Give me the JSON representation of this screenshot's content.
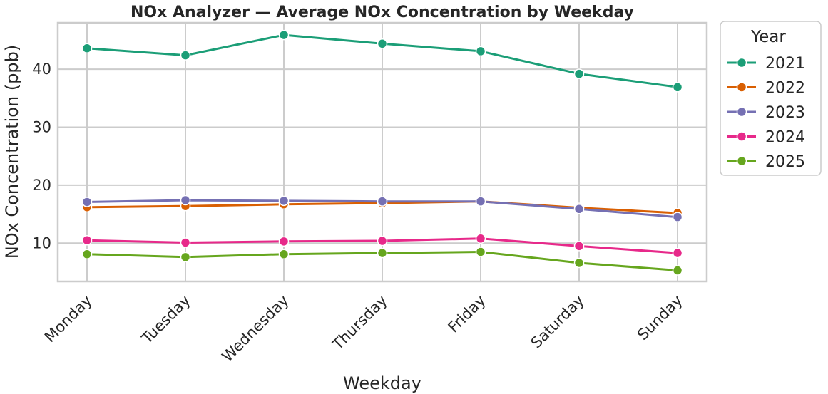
{
  "chart_data": {
    "type": "line",
    "title": "NOx Analyzer — Average NOx Concentration by Weekday",
    "xlabel": "Weekday",
    "ylabel": "NOx Concentration (ppb)",
    "categories": [
      "Monday",
      "Tuesday",
      "Wednesday",
      "Thursday",
      "Friday",
      "Saturday",
      "Sunday"
    ],
    "ylim": [
      3.4,
      48
    ],
    "yticks": [
      10,
      20,
      30,
      40
    ],
    "grid": true,
    "legend": {
      "title": "Year",
      "placement": "outside-top-right"
    },
    "series": [
      {
        "name": "2021",
        "color": "#1b9e77",
        "values": [
          43.6,
          42.4,
          45.9,
          44.4,
          43.1,
          39.2,
          36.9
        ]
      },
      {
        "name": "2022",
        "color": "#d95f02",
        "values": [
          16.2,
          16.4,
          16.7,
          16.9,
          17.2,
          16.1,
          15.2
        ]
      },
      {
        "name": "2023",
        "color": "#7570b3",
        "values": [
          17.1,
          17.4,
          17.3,
          17.2,
          17.2,
          15.9,
          14.5
        ]
      },
      {
        "name": "2024",
        "color": "#e7298a",
        "values": [
          10.5,
          10.1,
          10.3,
          10.4,
          10.8,
          9.5,
          8.3
        ]
      },
      {
        "name": "2025",
        "color": "#66a61e",
        "values": [
          8.1,
          7.6,
          8.1,
          8.3,
          8.5,
          6.6,
          5.3
        ]
      }
    ]
  }
}
